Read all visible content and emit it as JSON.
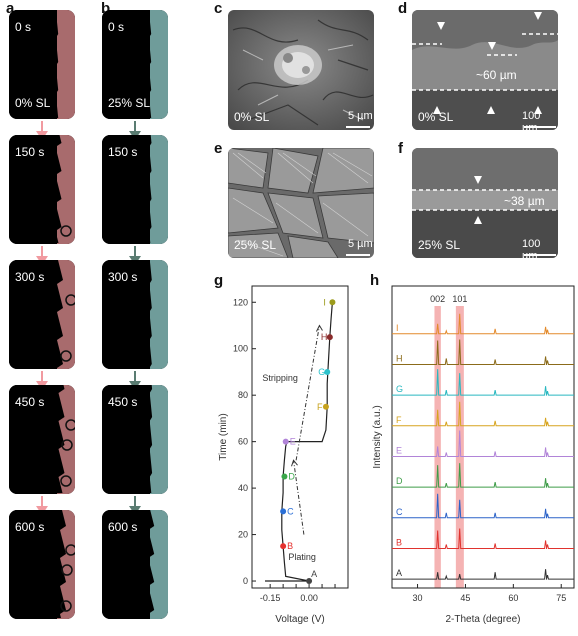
{
  "panels": {
    "a": {
      "label": "a",
      "condition": "0% SL",
      "times": [
        "0 s",
        "150 s",
        "300 s",
        "450 s",
        "600 s"
      ],
      "color": "#a86b6d",
      "arrow_color": "#f19aa0"
    },
    "b": {
      "label": "b",
      "condition": "25% SL",
      "times": [
        "0 s",
        "150 s",
        "300 s",
        "450 s",
        "600 s"
      ],
      "color": "#6f9c9a",
      "arrow_color": "#5a7c72"
    },
    "c": {
      "label": "c",
      "caption": "0% SL",
      "scale": "5 µm"
    },
    "d": {
      "label": "d",
      "caption": "0% SL",
      "scale": "100 µm",
      "thickness": "~60 µm"
    },
    "e": {
      "label": "e",
      "caption": "25% SL",
      "scale": "5 µm"
    },
    "f": {
      "label": "f",
      "caption": "25% SL",
      "scale": "100 µm",
      "thickness": "~38 µm"
    },
    "g": {
      "label": "g"
    },
    "h": {
      "label": "h"
    }
  },
  "chart_data": [
    {
      "type": "line",
      "panel": "g",
      "xlabel": "Voltage (V)",
      "ylabel": "Time (min)",
      "xlim": [
        -0.22,
        0.15
      ],
      "ylim": [
        -3,
        127
      ],
      "xticks": [
        "-0.15",
        "-0.10",
        "-0.05",
        "0.00",
        "0.05",
        "0.10"
      ],
      "xtick_values": [
        -0.15,
        -0.1,
        -0.05,
        0.0,
        0.05,
        0.1
      ],
      "yticks": [
        "0",
        "20",
        "40",
        "60",
        "80",
        "100",
        "120"
      ],
      "ytick_values": [
        0,
        20,
        40,
        60,
        80,
        100,
        120
      ],
      "series": [
        {
          "x": [
            -0.17,
            0.0,
            -0.09,
            -0.095,
            -0.1,
            -0.105,
            -0.105,
            -0.1,
            -0.1,
            -0.095,
            -0.09,
            -0.085,
            0.05,
            0.065,
            0.07,
            0.07,
            0.075,
            0.08,
            0.085,
            0.09
          ],
          "y": [
            0,
            0,
            2,
            8,
            15,
            22,
            30,
            38,
            45,
            52,
            58,
            60,
            60,
            65,
            75,
            85,
            95,
            105,
            113,
            120
          ]
        }
      ],
      "points": [
        {
          "label": "A",
          "x": 0.0,
          "y": 0,
          "color": "#444444"
        },
        {
          "label": "B",
          "x": -0.1,
          "y": 15,
          "color": "#e5322f"
        },
        {
          "label": "C",
          "x": -0.1,
          "y": 30,
          "color": "#2b6fd6"
        },
        {
          "label": "D",
          "x": -0.095,
          "y": 45,
          "color": "#3aa64a"
        },
        {
          "label": "E",
          "x": -0.09,
          "y": 60,
          "color": "#b184d8"
        },
        {
          "label": "F",
          "x": 0.065,
          "y": 75,
          "color": "#c7a21c"
        },
        {
          "label": "G",
          "x": 0.07,
          "y": 90,
          "color": "#2dc2cc"
        },
        {
          "label": "H",
          "x": 0.08,
          "y": 105,
          "color": "#8a2b2b"
        },
        {
          "label": "I",
          "x": 0.09,
          "y": 120,
          "color": "#9c9b1c"
        }
      ],
      "annotations": [
        "Stripping",
        "Plating"
      ]
    },
    {
      "type": "line",
      "panel": "h",
      "xlabel": "2-Theta (degree)",
      "ylabel": "Intensity (a.u.)",
      "xlim": [
        22,
        79
      ],
      "xticks": [
        "30",
        "45",
        "60",
        "75"
      ],
      "xtick_values": [
        30,
        45,
        60,
        75
      ],
      "highlight_labels": [
        "002",
        "101"
      ],
      "highlight_ranges": [
        [
          35.3,
          37.3
        ],
        [
          42.0,
          44.5
        ]
      ],
      "peaks": [
        36.3,
        39.0,
        43.2,
        54.3,
        70.1,
        70.7
      ],
      "series": [
        {
          "name": "I",
          "color": "#e38a2c",
          "heights": [
            10,
            3,
            20,
            5,
            7,
            4
          ]
        },
        {
          "name": "H",
          "color": "#8b6b1a",
          "heights": [
            24,
            6,
            25,
            5,
            8,
            4
          ]
        },
        {
          "name": "G",
          "color": "#29b8c0",
          "heights": [
            26,
            5,
            22,
            5,
            9,
            4
          ]
        },
        {
          "name": "F",
          "color": "#d7a41e",
          "heights": [
            16,
            4,
            24,
            5,
            8,
            4
          ]
        },
        {
          "name": "E",
          "color": "#b184d8",
          "heights": [
            10,
            4,
            26,
            5,
            9,
            4
          ]
        },
        {
          "name": "D",
          "color": "#3e9c48",
          "heights": [
            22,
            4,
            24,
            5,
            9,
            4
          ]
        },
        {
          "name": "C",
          "color": "#2b62c8",
          "heights": [
            24,
            5,
            18,
            5,
            9,
            4
          ]
        },
        {
          "name": "B",
          "color": "#e0332e",
          "heights": [
            18,
            4,
            20,
            5,
            8,
            4
          ]
        },
        {
          "name": "A",
          "color": "#333333",
          "heights": [
            7,
            3,
            5,
            7,
            10,
            4
          ]
        }
      ]
    }
  ]
}
